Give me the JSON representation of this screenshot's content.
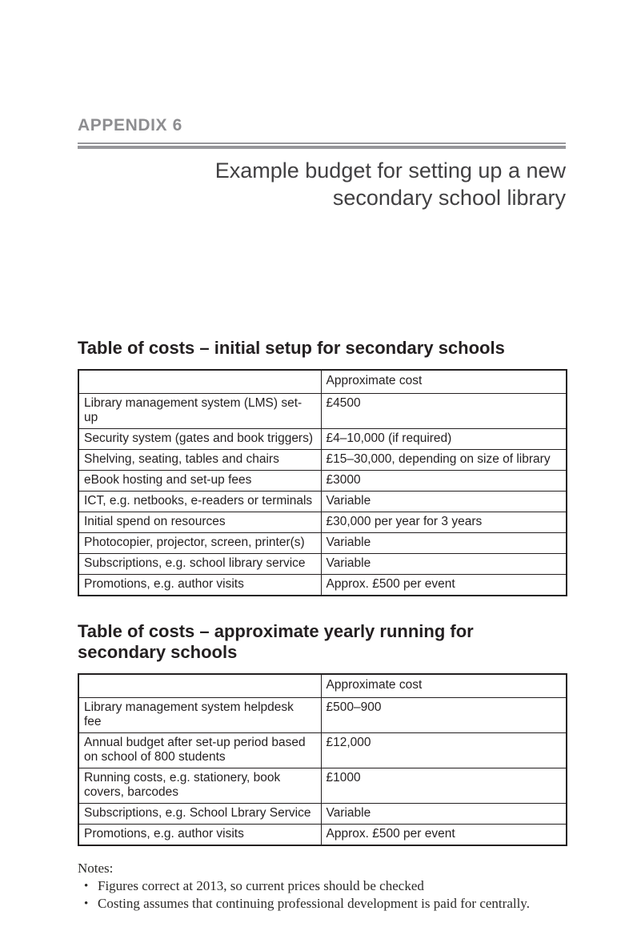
{
  "page": {
    "appendix_label": "APPENDIX 6",
    "title_lines": [
      "Example budget for setting up a new",
      "secondary school library"
    ]
  },
  "tables": [
    {
      "heading": "Table of costs – initial setup for secondary schools",
      "cost_header": "Approximate cost",
      "rows": [
        {
          "item": "Library management system (LMS) set-up",
          "cost": "£4500"
        },
        {
          "item": "Security system (gates and book triggers)",
          "cost": "£4–10,000 (if required)"
        },
        {
          "item": "Shelving, seating, tables and chairs",
          "cost": "£15–30,000, depending on size of library"
        },
        {
          "item": "eBook hosting and set-up fees",
          "cost": "£3000"
        },
        {
          "item": "ICT, e.g. netbooks, e-readers or terminals",
          "cost": "Variable"
        },
        {
          "item": "Initial spend on resources",
          "cost": "£30,000 per year for 3 years"
        },
        {
          "item": "Photocopier, projector, screen, printer(s)",
          "cost": "Variable"
        },
        {
          "item": "Subscriptions, e.g. school library service",
          "cost": "Variable"
        },
        {
          "item": "Promotions, e.g. author visits",
          "cost": "Approx. £500 per event"
        }
      ]
    },
    {
      "heading": "Table of costs – approximate yearly running for secondary schools",
      "cost_header": "Approximate cost",
      "rows": [
        {
          "item": "Library management system helpdesk fee",
          "cost": "£500–900"
        },
        {
          "item": "Annual budget after set-up period based on school of 800 students",
          "cost": "£12,000"
        },
        {
          "item": "Running costs, e.g. stationery, book covers, barcodes",
          "cost": "£1000"
        },
        {
          "item": "Subscriptions, e.g. School Lbrary Service",
          "cost": "Variable"
        },
        {
          "item": "Promotions, e.g. author visits",
          "cost": "Approx. £500 per event"
        }
      ]
    }
  ],
  "notes": {
    "label": "Notes:",
    "bullet": "•",
    "items": [
      "Figures correct at 2013, so current prices should be checked",
      "Costing assumes that continuing professional development is paid for centrally."
    ]
  },
  "colors": {
    "appendix_gray": "#8d8d90",
    "rule_gray": "#96969a",
    "text_dark": "#231f20"
  }
}
